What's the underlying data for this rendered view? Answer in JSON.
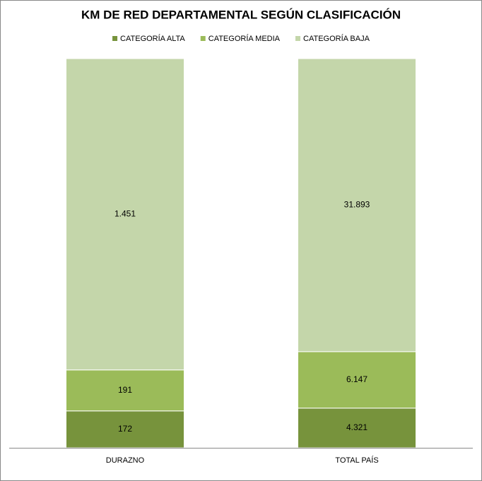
{
  "chart_data": {
    "type": "bar",
    "stacking": "percent",
    "title": "KM DE RED DEPARTAMENTAL SEGÚN CLASIFICACIÓN",
    "categories": [
      "DURAZNO",
      "TOTAL PAÍS"
    ],
    "series": [
      {
        "name": "CATEGORÍA ALTA",
        "color": "#77933c",
        "values": [
          172,
          4321
        ],
        "value_labels": [
          "172",
          "4.321"
        ]
      },
      {
        "name": "CATEGORÍA MEDIA",
        "color": "#9bbb59",
        "values": [
          191,
          6147
        ],
        "value_labels": [
          "191",
          "6.147"
        ]
      },
      {
        "name": "CATEGORÍA BAJA",
        "color": "#c4d6aa",
        "values": [
          1451,
          31893
        ],
        "value_labels": [
          "1.451",
          "31.893"
        ]
      }
    ],
    "legend": "top"
  }
}
